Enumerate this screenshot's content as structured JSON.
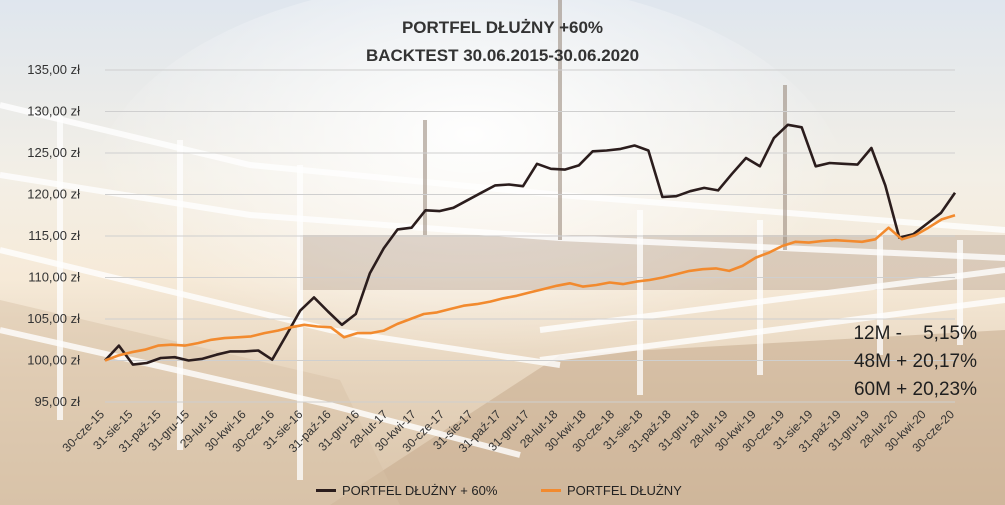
{
  "chart_data": {
    "type": "line",
    "title": "PORTFEL DŁUŻNY +60%",
    "subtitle": "BACKTEST 30.06.2015-30.06.2020",
    "ylim": [
      95,
      135
    ],
    "yticks": [
      95,
      100,
      105,
      110,
      115,
      120,
      125,
      130,
      135
    ],
    "ytick_labels": [
      "95,00 zł",
      "100,00 zł",
      "105,00 zł",
      "110,00 zł",
      "115,00 zł",
      "120,00 zł",
      "125,00 zł",
      "130,00 zł",
      "135,00 zł"
    ],
    "xtick_labels": [
      "30-cze-15",
      "31-sie-15",
      "31-paź-15",
      "31-gru-15",
      "29-lut-16",
      "30-kwi-16",
      "30-cze-16",
      "31-sie-16",
      "31-paź-16",
      "31-gru-16",
      "28-lut-17",
      "30-kwi-17",
      "30-cze-17",
      "31-sie-17",
      "31-paź-17",
      "31-gru-17",
      "28-lut-18",
      "30-kwi-18",
      "30-cze-18",
      "31-sie-18",
      "31-paź-18",
      "31-gru-18",
      "28-lut-19",
      "30-kwi-19",
      "30-cze-19",
      "31-sie-19",
      "31-paź-19",
      "31-gru-19",
      "28-lut-20",
      "30-kwi-20",
      "30-cze-20"
    ],
    "series": [
      {
        "name": "PORTFEL DŁUŻNY + 60%",
        "color": "#2b1d1d",
        "values": [
          100.0,
          101.8,
          99.5,
          99.7,
          100.3,
          100.4,
          100.0,
          100.2,
          100.7,
          101.1,
          101.1,
          101.2,
          100.1,
          103.0,
          106.0,
          107.6,
          105.9,
          104.3,
          105.6,
          110.5,
          113.5,
          115.8,
          116.0,
          118.1,
          118.0,
          118.4,
          119.3,
          120.2,
          121.1,
          121.2,
          121.0,
          123.7,
          123.1,
          123.0,
          123.5,
          125.2,
          125.3,
          125.5,
          125.9,
          125.3,
          119.7,
          119.8,
          120.4,
          120.8,
          120.5,
          122.5,
          124.4,
          123.4,
          126.8,
          128.4,
          128.1,
          123.4,
          123.8,
          123.7,
          123.6,
          125.6,
          121.1,
          114.8,
          115.2,
          116.5,
          117.8,
          120.2
        ]
      },
      {
        "name": "PORTFEL DŁUŻNY",
        "color": "#f28a2e",
        "values": [
          100.0,
          100.6,
          101.0,
          101.3,
          101.8,
          101.9,
          101.8,
          102.1,
          102.5,
          102.7,
          102.8,
          102.9,
          103.3,
          103.6,
          104.0,
          104.3,
          104.1,
          104.0,
          102.8,
          103.3,
          103.3,
          103.6,
          104.4,
          105.0,
          105.6,
          105.8,
          106.2,
          106.6,
          106.8,
          107.1,
          107.5,
          107.8,
          108.2,
          108.6,
          109.0,
          109.3,
          108.9,
          109.1,
          109.4,
          109.2,
          109.5,
          109.7,
          110.0,
          110.4,
          110.8,
          111.0,
          111.1,
          110.8,
          111.4,
          112.4,
          113.0,
          113.8,
          114.3,
          114.2,
          114.4,
          114.5,
          114.4,
          114.3,
          114.6,
          116.0,
          114.6,
          115.1,
          116.0,
          117.0,
          117.5
        ]
      }
    ],
    "legend_position": "bottom",
    "grid": true
  },
  "stats": {
    "line1": "12M -    5,15%",
    "line2": "48M + 20,17%",
    "line3": "60M + 20,23%"
  }
}
